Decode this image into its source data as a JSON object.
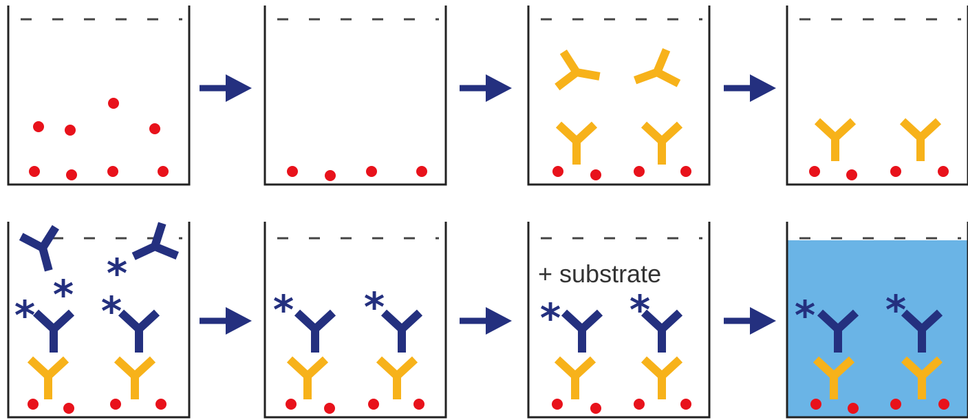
{
  "colors": {
    "well_outline": "#222222",
    "fluid_line": "#444444",
    "antigen": "#e8121b",
    "primary_antibody": "#f7b21a",
    "secondary_antibody": "#24307f",
    "arrow": "#24307f",
    "substrate_fill": "#6ab4e6"
  },
  "icons": {
    "antigen": "red-dot",
    "primary_antibody": "y-shape-yellow",
    "secondary_antibody": "y-shape-blue",
    "enzyme_label": "asterisk",
    "step_arrow": "right-arrow"
  },
  "steps": [
    {
      "row": 1,
      "col": 1,
      "contents": [
        "antigen-free",
        "antigen-bound"
      ]
    },
    {
      "row": 1,
      "col": 2,
      "contents": [
        "antigen-bound"
      ]
    },
    {
      "row": 1,
      "col": 3,
      "contents": [
        "antigen-bound",
        "primary-antibody-free",
        "primary-antibody-bound"
      ]
    },
    {
      "row": 1,
      "col": 4,
      "contents": [
        "antigen-bound",
        "primary-antibody-bound"
      ]
    },
    {
      "row": 2,
      "col": 1,
      "contents": [
        "antigen-bound",
        "primary-antibody-bound",
        "secondary-antibody-free",
        "secondary-antibody-bound"
      ]
    },
    {
      "row": 2,
      "col": 2,
      "contents": [
        "antigen-bound",
        "primary-antibody-bound",
        "secondary-antibody-bound"
      ]
    },
    {
      "row": 2,
      "col": 3,
      "contents": [
        "antigen-bound",
        "primary-antibody-bound",
        "secondary-antibody-bound"
      ],
      "label": "+ substrate"
    },
    {
      "row": 2,
      "col": 4,
      "contents": [
        "antigen-bound",
        "primary-antibody-bound",
        "secondary-antibody-bound",
        "substrate-color"
      ]
    }
  ],
  "substrate_label": "+ substrate",
  "enzyme_symbol": "*"
}
